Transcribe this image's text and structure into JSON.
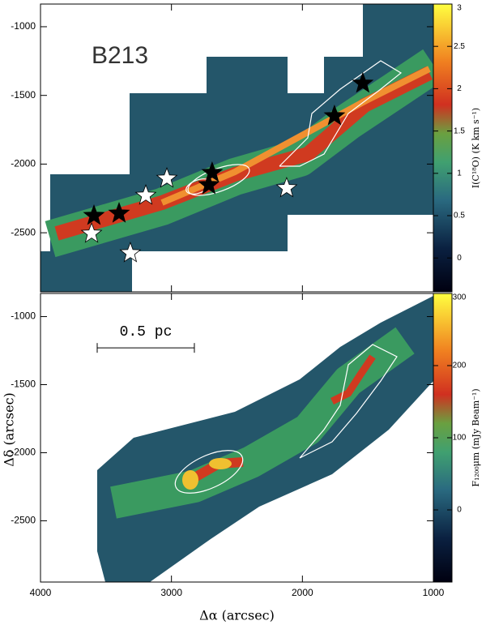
{
  "chart_data": [
    {
      "type": "scatter",
      "title": "B213",
      "xlim": [
        4000,
        1000
      ],
      "xticks": [
        4000,
        3000,
        2000,
        1000
      ],
      "ylim": [
        -2930,
        -835
      ],
      "yticks": [
        -1000,
        -1500,
        -2000,
        -2500
      ],
      "series": [
        {
          "color": "#ffffff",
          "x": [
            3610,
            3314,
            3196,
            3035,
            2120
          ],
          "values": [
            -2506,
            -2648,
            -2229,
            -2105,
            -2175
          ]
        },
        {
          "color": "#000000",
          "x": [
            3592,
            3400,
            2689,
            2714,
            1755,
            1539
          ],
          "values": [
            -2376,
            -2359,
            -2063,
            -2152,
            -1650,
            -1413
          ]
        }
      ],
      "colorbar": {
        "label": "I(C¹⁸O) (K km s⁻¹)",
        "lim": [
          -0.4,
          3
        ],
        "ticks": [
          0,
          0.5,
          1,
          1.5,
          2,
          2.5,
          3
        ]
      }
    },
    {
      "type": "image",
      "xlabel": "Δα (arcsec)",
      "ylabel": "Δδ (arcsec)",
      "xlim": [
        4000,
        1000
      ],
      "xticks": [
        4000,
        3000,
        2000,
        1000
      ],
      "ylim": [
        -2950,
        -830
      ],
      "yticks": [
        -1000,
        -1500,
        -2000,
        -2500
      ],
      "scalebar": {
        "label": "0.5 pc",
        "x": [
          3567,
          2825
        ],
        "y": -1230
      },
      "colorbar": {
        "label": "F₁₂₀₀μm (mJy Beam⁻¹)",
        "lim": [
          -100,
          300
        ],
        "ticks": [
          0,
          100,
          200,
          300
        ]
      }
    }
  ]
}
